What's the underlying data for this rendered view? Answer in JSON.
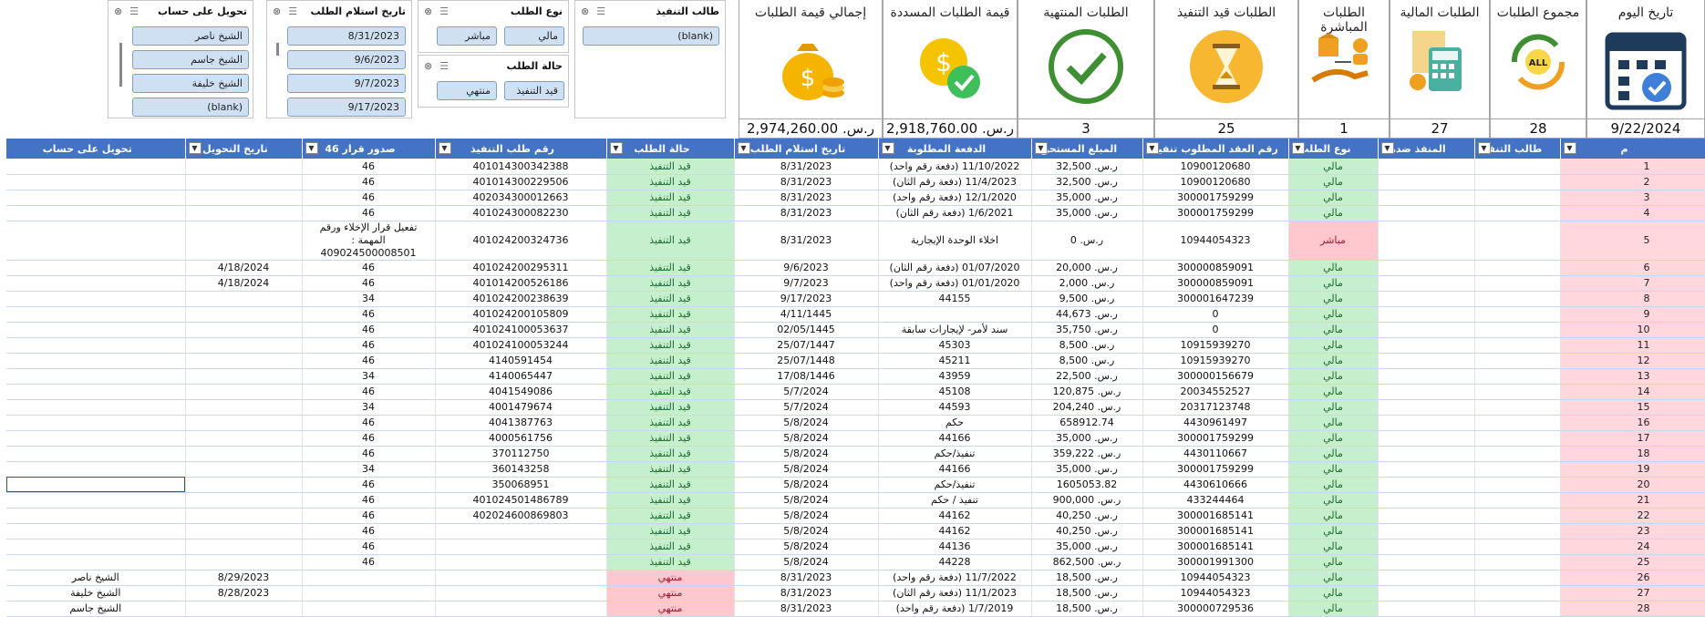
{
  "slicers": {
    "executor": {
      "title": "طالب التنفيذ",
      "items": [
        "(blank)"
      ]
    },
    "request_type": {
      "title": "نوع الطلب",
      "items": [
        "مالي",
        "مباشر"
      ]
    },
    "request_status": {
      "title": "حالة الطلب",
      "items": [
        "قيد التنفيذ",
        "منتهي"
      ]
    },
    "receipt_date": {
      "title": "تاريخ استلام الطلب",
      "items": [
        "8/31/2023",
        "9/6/2023",
        "9/7/2023",
        "9/17/2023"
      ]
    },
    "transfer_account": {
      "title": "تحويل على حساب",
      "items": [
        "الشيخ ناصر",
        "الشيخ جاسم",
        "الشيخ خليفة",
        "(blank)"
      ]
    }
  },
  "kpis": [
    {
      "title": "تاريخ اليوم",
      "value": "9/22/2024",
      "icon": "calendar-icon"
    },
    {
      "title": "مجموع الطلبات",
      "value": "28",
      "icon": "all-cycle-icon"
    },
    {
      "title": "الطلبات المالية",
      "value": "27",
      "icon": "calculator-icon"
    },
    {
      "title": "الطلبات المباشرة",
      "value": "1",
      "icon": "hand-box-icon"
    },
    {
      "title": "الطلبات قيد التنفيذ",
      "value": "25",
      "icon": "hourglass-icon"
    },
    {
      "title": "الطلبات المنتهية",
      "value": "3",
      "icon": "checkmark-icon"
    },
    {
      "title": "قيمة الطلبات المسددة",
      "value": "ر.س. 2,918,760.00",
      "icon": "paid-coin-icon"
    },
    {
      "title": "إجمالي قيمة الطلبات",
      "value": "ر.س. 2,974,260.00",
      "icon": "money-bag-icon"
    }
  ],
  "columns": [
    "م",
    "طالب التنفيذ",
    "المنفذ ضده",
    "نوع الطلب",
    "رقم العقد المطلوب تنفيذه",
    "المبلغ المستحق",
    "الدفعة المطلوبة",
    "تاريخ استلام الطلب",
    "حالة الطلب",
    "رقم طلب التنفيذ",
    "صدور قرار 46",
    "تاريخ التحويل",
    "تحويل على حساب"
  ],
  "rows": [
    {
      "n": "1",
      "type": "مالي",
      "contract": "10900120680",
      "amount": "ر.س. 32,500",
      "payment": "(دفعة رقم واحد) 11/10/2022",
      "date": "8/31/2023",
      "status": "قيد التنفيذ",
      "req": "401014300342388",
      "dec": "46",
      "tdate": "",
      "acct": ""
    },
    {
      "n": "2",
      "type": "مالي",
      "contract": "10900120680",
      "amount": "ر.س. 32,500",
      "payment": "(دفعة رقم الثان) 11/4/2023",
      "date": "8/31/2023",
      "status": "قيد التنفيذ",
      "req": "401014300229506",
      "dec": "46",
      "tdate": "",
      "acct": ""
    },
    {
      "n": "3",
      "type": "مالي",
      "contract": "300001759299",
      "amount": "ر.س. 35,000",
      "payment": "(دفعة رقم واحد) 12/1/2020",
      "date": "8/31/2023",
      "status": "قيد التنفيذ",
      "req": "402034300012663",
      "dec": "46",
      "tdate": "",
      "acct": ""
    },
    {
      "n": "4",
      "type": "مالي",
      "contract": "300001759299",
      "amount": "ر.س. 35,000",
      "payment": "(دفعة رقم الثان) 1/6/2021",
      "date": "8/31/2023",
      "status": "قيد التنفيذ",
      "req": "401024300082230",
      "dec": "46",
      "tdate": "",
      "acct": ""
    },
    {
      "n": "5",
      "type": "مباشر",
      "contract": "10944054323",
      "amount": "ر.س. 0",
      "payment": "اخلاء الوحدة الإيجارية",
      "date": "8/31/2023",
      "status": "قيد التنفيذ",
      "req": "401024200324736",
      "dec": "تفعيل قرار الإخلاء ورقم المهمة : 409024500008501",
      "tdate": "",
      "acct": "",
      "tall": true
    },
    {
      "n": "6",
      "type": "مالي",
      "contract": "300000859091",
      "amount": "ر.س. 20,000",
      "payment": "(دفعة رقم الثان) 01/07/2020",
      "date": "9/6/2023",
      "status": "قيد التنفيذ",
      "req": "401024200295311",
      "dec": "46",
      "tdate": "4/18/2024",
      "acct": ""
    },
    {
      "n": "7",
      "type": "مالي",
      "contract": "300000859091",
      "amount": "ر.س. 2,000",
      "payment": "(دفعة رقم واحد) 01/01/2020",
      "date": "9/7/2023",
      "status": "قيد التنفيذ",
      "req": "401014200526186",
      "dec": "46",
      "tdate": "4/18/2024",
      "acct": ""
    },
    {
      "n": "8",
      "type": "مالي",
      "contract": "300001647239",
      "amount": "ر.س. 9,500",
      "payment": "44155",
      "date": "9/17/2023",
      "status": "قيد التنفيذ",
      "req": "401024200238639",
      "dec": "34",
      "tdate": "",
      "acct": ""
    },
    {
      "n": "9",
      "type": "مالي",
      "contract": "0",
      "amount": "ر.س. 44,673",
      "payment": "",
      "date": "4/11/1445",
      "status": "قيد التنفيذ",
      "req": "401024200105809",
      "dec": "46",
      "tdate": "",
      "acct": ""
    },
    {
      "n": "10",
      "type": "مالي",
      "contract": "0",
      "amount": "ر.س. 35,750",
      "payment": "سند لأمر- لإيجارات سابقة",
      "date": "02/05/1445",
      "status": "قيد التنفيذ",
      "req": "401024100053637",
      "dec": "46",
      "tdate": "",
      "acct": ""
    },
    {
      "n": "11",
      "type": "مالي",
      "contract": "10915939270",
      "amount": "ر.س. 8,500",
      "payment": "45303",
      "date": "25/07/1447",
      "status": "قيد التنفيذ",
      "req": "401024100053244",
      "dec": "46",
      "tdate": "",
      "acct": ""
    },
    {
      "n": "12",
      "type": "مالي",
      "contract": "10915939270",
      "amount": "ر.س. 8,500",
      "payment": "45211",
      "date": "25/07/1448",
      "status": "قيد التنفيذ",
      "req": "4140591454",
      "dec": "46",
      "tdate": "",
      "acct": ""
    },
    {
      "n": "13",
      "type": "مالي",
      "contract": "300000156679",
      "amount": "ر.س. 22,500",
      "payment": "43959",
      "date": "17/08/1446",
      "status": "قيد التنفيذ",
      "req": "4140065447",
      "dec": "34",
      "tdate": "",
      "acct": ""
    },
    {
      "n": "14",
      "type": "مالي",
      "contract": "20034552527",
      "amount": "ر.س. 120,875",
      "payment": "45108",
      "date": "5/7/2024",
      "status": "قيد التنفيذ",
      "req": "4041549086",
      "dec": "46",
      "tdate": "",
      "acct": ""
    },
    {
      "n": "15",
      "type": "مالي",
      "contract": "20317123748",
      "amount": "ر.س. 204,240",
      "payment": "44593",
      "date": "5/7/2024",
      "status": "قيد التنفيذ",
      "req": "4001479674",
      "dec": "34",
      "tdate": "",
      "acct": ""
    },
    {
      "n": "16",
      "type": "مالي",
      "contract": "4430961497",
      "amount": "658912.74",
      "payment": "حكم",
      "date": "5/8/2024",
      "status": "قيد التنفيذ",
      "req": "4041387763",
      "dec": "46",
      "tdate": "",
      "acct": ""
    },
    {
      "n": "17",
      "type": "مالي",
      "contract": "300001759299",
      "amount": "ر.س. 35,000",
      "payment": "44166",
      "date": "5/8/2024",
      "status": "قيد التنفيذ",
      "req": "4000561756",
      "dec": "46",
      "tdate": "",
      "acct": ""
    },
    {
      "n": "18",
      "type": "مالي",
      "contract": "4430110667",
      "amount": "ر.س. 359,222",
      "payment": "تنفيذ/حكم",
      "date": "5/8/2024",
      "status": "قيد التنفيذ",
      "req": "370112750",
      "dec": "46",
      "tdate": "",
      "acct": ""
    },
    {
      "n": "19",
      "type": "مالي",
      "contract": "300001759299",
      "amount": "ر.س. 35,000",
      "payment": "44166",
      "date": "5/8/2024",
      "status": "قيد التنفيذ",
      "req": "360143258",
      "dec": "34",
      "tdate": "",
      "acct": ""
    },
    {
      "n": "20",
      "type": "مالي",
      "contract": "4430610666",
      "amount": "1605053.82",
      "payment": "تنفيذ/حكم",
      "date": "5/8/2024",
      "status": "قيد التنفيذ",
      "req": "350068951",
      "dec": "46",
      "tdate": "",
      "acct": "",
      "sel": true
    },
    {
      "n": "21",
      "type": "مالي",
      "contract": "433244464",
      "amount": "ر.س. 900,000",
      "payment": "تنفيذ / حكم",
      "date": "5/8/2024",
      "status": "قيد التنفيذ",
      "req": "401024501486789",
      "dec": "46",
      "tdate": "",
      "acct": ""
    },
    {
      "n": "22",
      "type": "مالي",
      "contract": "300001685141",
      "amount": "ر.س. 40,250",
      "payment": "44162",
      "date": "5/8/2024",
      "status": "قيد التنفيذ",
      "req": "402024600869803",
      "dec": "46",
      "tdate": "",
      "acct": ""
    },
    {
      "n": "23",
      "type": "مالي",
      "contract": "300001685141",
      "amount": "ر.س. 40,250",
      "payment": "44162",
      "date": "5/8/2024",
      "status": "قيد التنفيذ",
      "req": "",
      "dec": "46",
      "tdate": "",
      "acct": ""
    },
    {
      "n": "24",
      "type": "مالي",
      "contract": "300001685141",
      "amount": "ر.س. 35,000",
      "payment": "44136",
      "date": "5/8/2024",
      "status": "قيد التنفيذ",
      "req": "",
      "dec": "46",
      "tdate": "",
      "acct": ""
    },
    {
      "n": "25",
      "type": "مالي",
      "contract": "300001991300",
      "amount": "ر.س. 862,500",
      "payment": "44228",
      "date": "5/8/2024",
      "status": "قيد التنفيذ",
      "req": "",
      "dec": "46",
      "tdate": "",
      "acct": ""
    },
    {
      "n": "26",
      "type": "مالي",
      "contract": "10944054323",
      "amount": "ر.س. 18,500",
      "payment": "(دفعة رقم واحد) 11/7/2022",
      "date": "8/31/2023",
      "status": "منتهي",
      "req": "",
      "dec": "",
      "tdate": "8/29/2023",
      "acct": "الشيخ ناصر"
    },
    {
      "n": "27",
      "type": "مالي",
      "contract": "10944054323",
      "amount": "ر.س. 18,500",
      "payment": "(دفعة رقم الثان) 11/1/2023",
      "date": "8/31/2023",
      "status": "منتهي",
      "req": "",
      "dec": "",
      "tdate": "8/28/2023",
      "acct": "الشيخ خليفة"
    },
    {
      "n": "28",
      "type": "مالي",
      "contract": "300000729536",
      "amount": "ر.س. 18,500",
      "payment": "(دفعة رقم واحد) 1/7/2019",
      "date": "8/31/2023",
      "status": "منتهي",
      "req": "",
      "dec": "",
      "tdate": "",
      "acct": "الشيخ جاسم"
    }
  ],
  "colors": {
    "header": "#4472c4",
    "green": "#c6efce",
    "pink": "#ffc7ce"
  }
}
